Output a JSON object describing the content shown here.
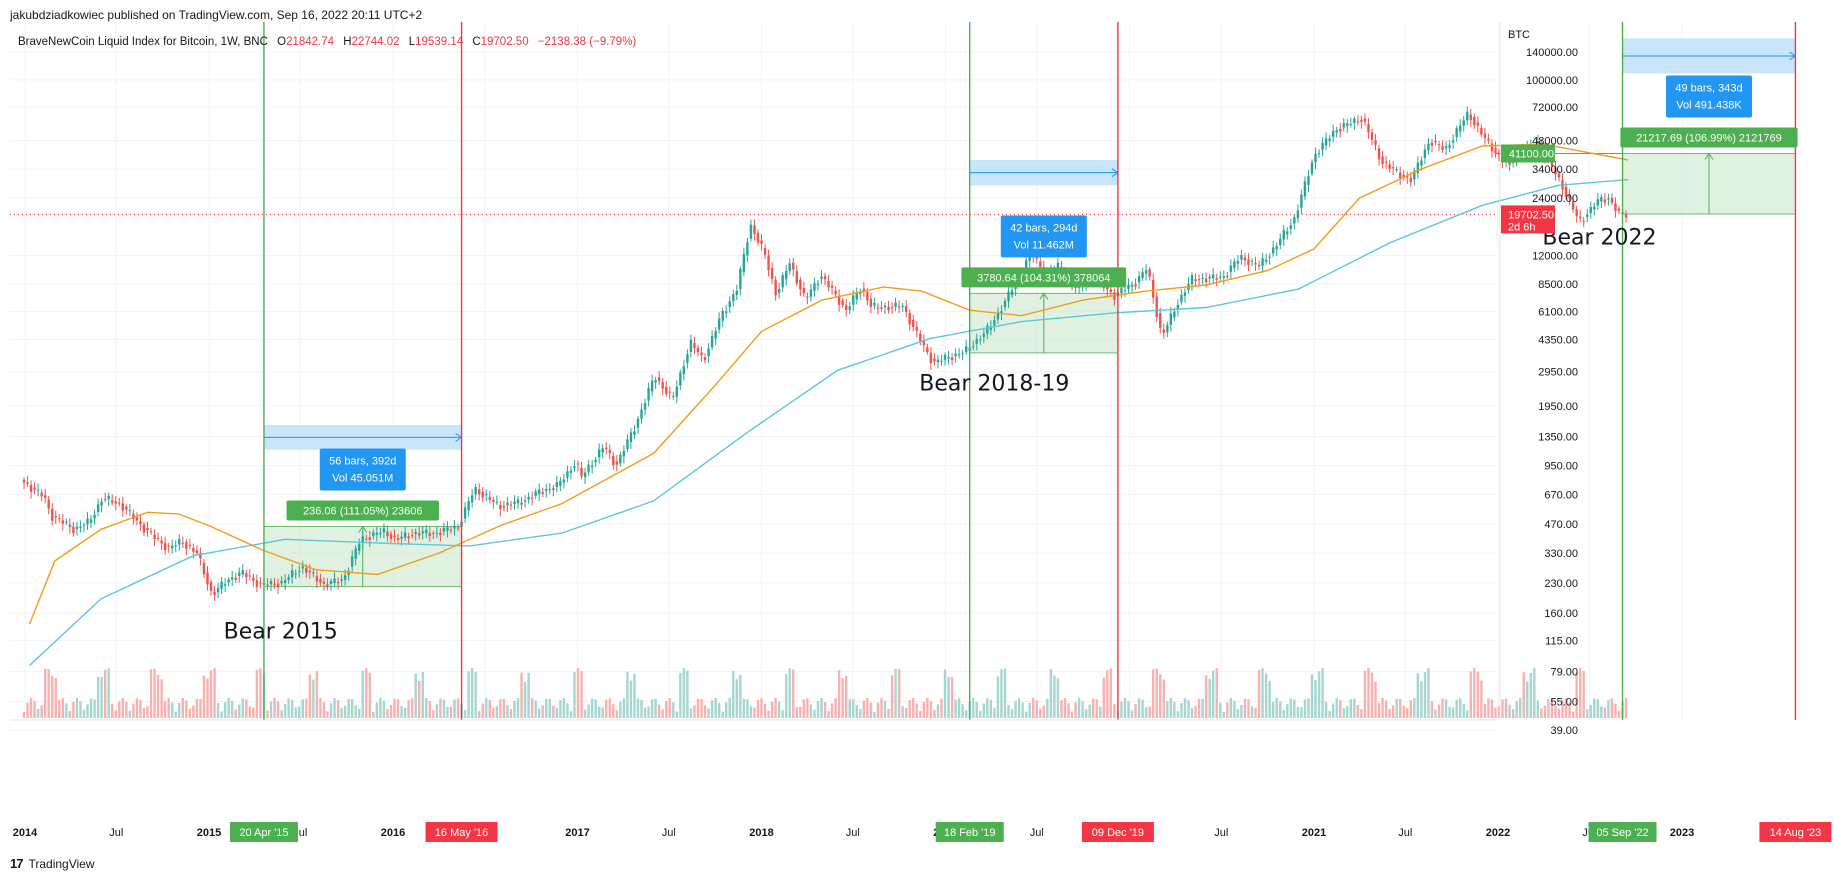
{
  "publisher": "jakubdziadkowiec published on TradingView.com, Sep 16, 2022 20:11 UTC+2",
  "footer_brand": "TradingView",
  "legend": {
    "symbol": "BraveNewCoin Liquid Index for Bitcoin, 1W, BNC",
    "o_label": "O",
    "o": "21842.74",
    "h_label": "H",
    "h": "22744.02",
    "l_label": "L",
    "l": "19539.14",
    "c_label": "C",
    "c": "19702.50",
    "change": "−2138.38 (−9.79%)"
  },
  "colors": {
    "up": "#26a69a",
    "down": "#ef5350",
    "ma_orange": "#f59c1a",
    "ma_cyan": "#5bc8d6",
    "bull_line": "#4caf50",
    "bear_line": "#f23645",
    "range_fill": "#c8e6c9",
    "range_stroke": "#4caf50",
    "label_blue": "#2196f3",
    "label_green": "#4caf50",
    "label_red": "#f23645",
    "band_blue": "#bbdefb",
    "price_line": "#f23645"
  },
  "chart_data": {
    "type": "candlestick",
    "scale": "log",
    "currency": "BTC",
    "timeframe": "1W",
    "x_ticks": [
      "2014",
      "Jul",
      "2015",
      "Jul",
      "2016",
      "Jul",
      "2017",
      "Jul",
      "2018",
      "Jul",
      "2019",
      "Jul",
      "2020",
      "Jul",
      "2021",
      "Jul",
      "2022",
      "Jul",
      "2023"
    ],
    "y_ticks": [
      "140000.00",
      "100000.00",
      "72000.00",
      "48000.00",
      "34000.00",
      "24000.00",
      "12000.00",
      "8500.00",
      "6100.00",
      "4350.00",
      "2950.00",
      "1950.00",
      "1350.00",
      "950.00",
      "670.00",
      "470.00",
      "330.00",
      "230.00",
      "160.00",
      "115.00",
      "79.00",
      "55.00",
      "39.00"
    ],
    "last_price": "19702.50",
    "countdown": "2d 6h",
    "target_price_label": "41100.00",
    "price_path": [
      {
        "t": "2013-12-30",
        "p": 800
      },
      {
        "t": "2014-02-15",
        "p": 650
      },
      {
        "t": "2014-03-01",
        "p": 520
      },
      {
        "t": "2014-04-15",
        "p": 440
      },
      {
        "t": "2014-05-15",
        "p": 480
      },
      {
        "t": "2014-06-10",
        "p": 640
      },
      {
        "t": "2014-07-15",
        "p": 600
      },
      {
        "t": "2014-08-20",
        "p": 480
      },
      {
        "t": "2014-09-20",
        "p": 400
      },
      {
        "t": "2014-10-20",
        "p": 350
      },
      {
        "t": "2014-11-15",
        "p": 380
      },
      {
        "t": "2014-12-15",
        "p": 330
      },
      {
        "t": "2015-01-14",
        "p": 200
      },
      {
        "t": "2015-02-15",
        "p": 240
      },
      {
        "t": "2015-03-15",
        "p": 260
      },
      {
        "t": "2015-04-20",
        "p": 225
      },
      {
        "t": "2015-06-01",
        "p": 230
      },
      {
        "t": "2015-07-10",
        "p": 280
      },
      {
        "t": "2015-08-25",
        "p": 225
      },
      {
        "t": "2015-10-01",
        "p": 240
      },
      {
        "t": "2015-11-05",
        "p": 390
      },
      {
        "t": "2015-12-20",
        "p": 430
      },
      {
        "t": "2016-01-15",
        "p": 390
      },
      {
        "t": "2016-02-20",
        "p": 420
      },
      {
        "t": "2016-04-01",
        "p": 420
      },
      {
        "t": "2016-05-16",
        "p": 455
      },
      {
        "t": "2016-06-18",
        "p": 720
      },
      {
        "t": "2016-08-05",
        "p": 580
      },
      {
        "t": "2016-09-15",
        "p": 610
      },
      {
        "t": "2016-10-25",
        "p": 690
      },
      {
        "t": "2016-12-01",
        "p": 750
      },
      {
        "t": "2017-01-05",
        "p": 1000
      },
      {
        "t": "2017-01-15",
        "p": 820
      },
      {
        "t": "2017-03-01",
        "p": 1200
      },
      {
        "t": "2017-03-25",
        "p": 950
      },
      {
        "t": "2017-05-01",
        "p": 1500
      },
      {
        "t": "2017-06-10",
        "p": 2800
      },
      {
        "t": "2017-07-15",
        "p": 2100
      },
      {
        "t": "2017-08-20",
        "p": 4200
      },
      {
        "t": "2017-09-15",
        "p": 3400
      },
      {
        "t": "2017-10-20",
        "p": 5800
      },
      {
        "t": "2017-11-20",
        "p": 8000
      },
      {
        "t": "2017-12-17",
        "p": 17500
      },
      {
        "t": "2018-01-15",
        "p": 12000
      },
      {
        "t": "2018-02-06",
        "p": 7500
      },
      {
        "t": "2018-03-05",
        "p": 11000
      },
      {
        "t": "2018-04-05",
        "p": 7000
      },
      {
        "t": "2018-05-05",
        "p": 9500
      },
      {
        "t": "2018-06-25",
        "p": 6200
      },
      {
        "t": "2018-07-25",
        "p": 8200
      },
      {
        "t": "2018-08-15",
        "p": 6400
      },
      {
        "t": "2018-10-15",
        "p": 6500
      },
      {
        "t": "2018-11-25",
        "p": 4000
      },
      {
        "t": "2018-12-15",
        "p": 3300
      },
      {
        "t": "2019-01-20",
        "p": 3550
      },
      {
        "t": "2019-02-18",
        "p": 3800
      },
      {
        "t": "2019-04-05",
        "p": 5000
      },
      {
        "t": "2019-05-20",
        "p": 8000
      },
      {
        "t": "2019-06-26",
        "p": 12500
      },
      {
        "t": "2019-07-25",
        "p": 9500
      },
      {
        "t": "2019-08-20",
        "p": 10500
      },
      {
        "t": "2019-09-25",
        "p": 8000
      },
      {
        "t": "2019-10-26",
        "p": 9300
      },
      {
        "t": "2019-12-09",
        "p": 7400
      },
      {
        "t": "2020-01-20",
        "p": 8700
      },
      {
        "t": "2020-02-12",
        "p": 10300
      },
      {
        "t": "2020-03-12",
        "p": 4500
      },
      {
        "t": "2020-04-15",
        "p": 7000
      },
      {
        "t": "2020-05-10",
        "p": 9000
      },
      {
        "t": "2020-07-10",
        "p": 9200
      },
      {
        "t": "2020-08-15",
        "p": 11800
      },
      {
        "t": "2020-09-20",
        "p": 10500
      },
      {
        "t": "2020-10-25",
        "p": 13500
      },
      {
        "t": "2020-12-01",
        "p": 19000
      },
      {
        "t": "2021-01-08",
        "p": 40000
      },
      {
        "t": "2021-02-20",
        "p": 55000
      },
      {
        "t": "2021-04-14",
        "p": 63000
      },
      {
        "t": "2021-05-20",
        "p": 38000
      },
      {
        "t": "2021-06-25",
        "p": 32000
      },
      {
        "t": "2021-07-20",
        "p": 30000
      },
      {
        "t": "2021-08-25",
        "p": 48000
      },
      {
        "t": "2021-09-25",
        "p": 43000
      },
      {
        "t": "2021-11-10",
        "p": 67000
      },
      {
        "t": "2021-12-15",
        "p": 48000
      },
      {
        "t": "2022-01-24",
        "p": 36000
      },
      {
        "t": "2022-03-28",
        "p": 47000
      },
      {
        "t": "2022-05-12",
        "p": 29000
      },
      {
        "t": "2022-06-18",
        "p": 18000
      },
      {
        "t": "2022-07-28",
        "p": 23500
      },
      {
        "t": "2022-08-15",
        "p": 24000
      },
      {
        "t": "2022-09-05",
        "p": 19800
      },
      {
        "t": "2022-09-16",
        "p": 19700
      }
    ],
    "ma_orange": [
      {
        "t": "2014-01-10",
        "p": 140
      },
      {
        "t": "2014-03-01",
        "p": 300
      },
      {
        "t": "2014-06-01",
        "p": 440
      },
      {
        "t": "2014-09-01",
        "p": 540
      },
      {
        "t": "2014-11-01",
        "p": 530
      },
      {
        "t": "2015-01-01",
        "p": 460
      },
      {
        "t": "2015-04-20",
        "p": 340
      },
      {
        "t": "2015-08-01",
        "p": 270
      },
      {
        "t": "2015-12-01",
        "p": 255
      },
      {
        "t": "2016-04-01",
        "p": 330
      },
      {
        "t": "2016-08-01",
        "p": 460
      },
      {
        "t": "2016-12-01",
        "p": 600
      },
      {
        "t": "2017-06-01",
        "p": 1100
      },
      {
        "t": "2017-10-01",
        "p": 2500
      },
      {
        "t": "2018-01-01",
        "p": 4800
      },
      {
        "t": "2018-05-01",
        "p": 7000
      },
      {
        "t": "2018-09-01",
        "p": 8200
      },
      {
        "t": "2018-11-15",
        "p": 7800
      },
      {
        "t": "2019-02-18",
        "p": 6200
      },
      {
        "t": "2019-06-01",
        "p": 5800
      },
      {
        "t": "2019-10-01",
        "p": 7000
      },
      {
        "t": "2020-02-01",
        "p": 7800
      },
      {
        "t": "2020-06-01",
        "p": 8400
      },
      {
        "t": "2020-10-01",
        "p": 10000
      },
      {
        "t": "2021-01-01",
        "p": 13000
      },
      {
        "t": "2021-04-01",
        "p": 24000
      },
      {
        "t": "2021-08-01",
        "p": 34000
      },
      {
        "t": "2021-12-01",
        "p": 45000
      },
      {
        "t": "2022-04-01",
        "p": 46000
      },
      {
        "t": "2022-09-16",
        "p": 38000
      }
    ],
    "ma_cyan": [
      {
        "t": "2014-01-10",
        "p": 85
      },
      {
        "t": "2014-06-01",
        "p": 190
      },
      {
        "t": "2014-12-01",
        "p": 320
      },
      {
        "t": "2015-06-01",
        "p": 390
      },
      {
        "t": "2016-01-01",
        "p": 370
      },
      {
        "t": "2016-06-01",
        "p": 360
      },
      {
        "t": "2016-12-01",
        "p": 420
      },
      {
        "t": "2017-06-01",
        "p": 620
      },
      {
        "t": "2017-12-01",
        "p": 1400
      },
      {
        "t": "2018-06-01",
        "p": 3000
      },
      {
        "t": "2018-12-01",
        "p": 4400
      },
      {
        "t": "2019-06-01",
        "p": 5400
      },
      {
        "t": "2019-12-01",
        "p": 6000
      },
      {
        "t": "2020-06-01",
        "p": 6400
      },
      {
        "t": "2020-12-01",
        "p": 8000
      },
      {
        "t": "2021-06-01",
        "p": 14000
      },
      {
        "t": "2021-12-01",
        "p": 22000
      },
      {
        "t": "2022-05-01",
        "p": 28000
      },
      {
        "t": "2022-09-16",
        "p": 30000
      }
    ],
    "cycles": [
      {
        "start_date": "2015-04-20",
        "end_date": "2016-05-16",
        "start_label": "20 Apr '15",
        "end_label": "16 May '16",
        "low": 220,
        "high": 455,
        "change_label": "236.06 (111.05%) 23606",
        "bars_label": "56 bars, 392d",
        "vol_label": "Vol 45.051M",
        "band_low": 1150,
        "band_high": 1550,
        "title": "Bear 2015",
        "title_date": "2015-01-30",
        "title_price": 118
      },
      {
        "start_date": "2019-02-18",
        "end_date": "2019-12-09",
        "start_label": "18 Feb '19",
        "end_label": "09 Dec '19",
        "low": 3700,
        "high": 7600,
        "change_label": "3780.64 (104.31%) 378064",
        "bars_label": "42 bars, 294d",
        "vol_label": "Vol 11.462M",
        "band_low": 28000,
        "band_high": 38000,
        "title": "Bear 2018-19",
        "title_date": "2018-11-10",
        "title_price": 2350
      },
      {
        "start_date": "2022-09-05",
        "end_date": "2023-08-14",
        "start_label": "05 Sep '22",
        "end_label": "14 Aug '23",
        "low": 19800,
        "high": 41100,
        "change_label": "21217.69 (106.99%) 2121769",
        "bars_label": "49 bars, 343d",
        "vol_label": "Vol 491.438K",
        "band_low": 108000,
        "band_high": 165000,
        "title": "Bear 2022",
        "title_date": "2022-03-30",
        "title_price": 13700
      }
    ]
  }
}
